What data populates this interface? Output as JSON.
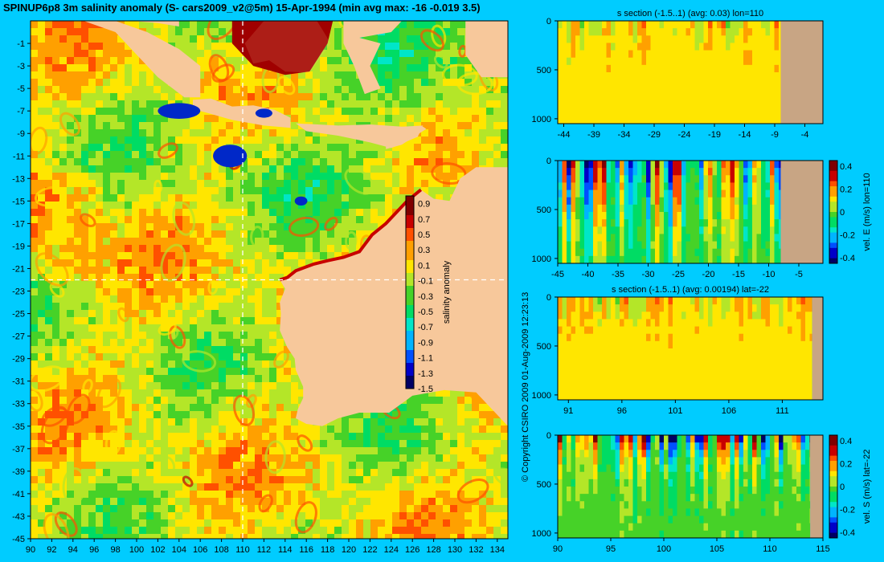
{
  "title": "SPINUP6p8 3m salinity anomaly (S- cars2009_v2@5m) 15-Apr-1994 (min avg max: -16 -0.019 3.5)",
  "copyright": "© Copyright CSIRO 2009   01-Aug-2009 12:23:13",
  "colors": {
    "background": "#00ccff",
    "land": "#f7c89b",
    "section_land": "#c8a584",
    "dashed_line": "#ffffff",
    "colormap": [
      "#000064",
      "#0000c8",
      "#0050ff",
      "#00b4ff",
      "#00e6c8",
      "#00dc64",
      "#46d228",
      "#b4e628",
      "#ffe600",
      "#ffa000",
      "#ff5000",
      "#c80000",
      "#800000"
    ]
  },
  "chart_data": [
    {
      "type": "heatmap",
      "id": "map",
      "title": "SPINUP6p8 3m salinity anomaly (S- cars2009_v2@5m) 15-Apr-1994 (min avg max: -16 -0.019 3.5)",
      "x_ticks": [
        90,
        92,
        94,
        96,
        98,
        100,
        102,
        104,
        106,
        108,
        110,
        112,
        114,
        116,
        118,
        120,
        122,
        124,
        126,
        128,
        130,
        132,
        134
      ],
      "y_ticks": [
        -1,
        -3,
        -5,
        -7,
        -9,
        -11,
        -13,
        -15,
        -17,
        -19,
        -21,
        -23,
        -25,
        -27,
        -29,
        -31,
        -33,
        -35,
        -37,
        -39,
        -41,
        -43,
        -45
      ],
      "xlim": [
        90,
        135
      ],
      "ylim": [
        -45,
        1
      ],
      "dashed_lines": {
        "lon": 110,
        "lat": -22
      },
      "colorbar": {
        "label": "salinity anomaly",
        "ticks": [
          0.9,
          0.7,
          0.5,
          0.3,
          0.1,
          -0.1,
          -0.3,
          -0.5,
          -0.7,
          -0.9,
          -1.1,
          -1.3,
          -1.5
        ],
        "range": [
          -1.5,
          1.0
        ]
      }
    },
    {
      "type": "heatmap",
      "id": "s-section-lon110",
      "title": "s section (-1.5..1) (avg: 0.03) lon=110",
      "x_ticks": [
        -44,
        -39,
        -34,
        -29,
        -24,
        -19,
        -14,
        -9,
        -4
      ],
      "xlim": [
        -45,
        -1
      ],
      "y_ticks": [
        0,
        500,
        1000
      ],
      "ylim": [
        0,
        1050
      ],
      "land_from_x": -8
    },
    {
      "type": "heatmap",
      "id": "vel-e-lon110",
      "title": "",
      "x_ticks": [
        -45,
        -40,
        -35,
        -30,
        -25,
        -20,
        -15,
        -10,
        -5
      ],
      "xlim": [
        -45,
        -1
      ],
      "y_ticks": [
        0,
        500,
        1000
      ],
      "ylim": [
        0,
        1050
      ],
      "land_from_x": -8,
      "colorbar": {
        "label": "vel. E (m/s) lon=110",
        "ticks": [
          0.4,
          0.2,
          0,
          -0.2,
          -0.4
        ],
        "range": [
          -0.45,
          0.45
        ]
      }
    },
    {
      "type": "heatmap",
      "id": "s-section-lat22",
      "title": "s section (-1.5..1) (avg: 0.00194) lat=-22",
      "x_ticks": [
        91,
        96,
        101,
        106,
        111
      ],
      "xlim": [
        90,
        114.8
      ],
      "y_ticks": [
        0,
        500,
        1000
      ],
      "ylim": [
        0,
        1050
      ],
      "land_from_x": 113.8
    },
    {
      "type": "heatmap",
      "id": "vel-s-lat22",
      "title": "",
      "x_ticks": [
        90,
        95,
        100,
        105,
        110,
        115
      ],
      "xlim": [
        90,
        115
      ],
      "y_ticks": [
        0,
        500,
        1000
      ],
      "ylim": [
        0,
        1050
      ],
      "land_from_x": 113.8,
      "colorbar": {
        "label": "vel. S (m/s) lat=-22",
        "ticks": [
          0.4,
          0.2,
          0,
          -0.2,
          -0.4
        ],
        "range": [
          -0.45,
          0.45
        ]
      }
    }
  ]
}
